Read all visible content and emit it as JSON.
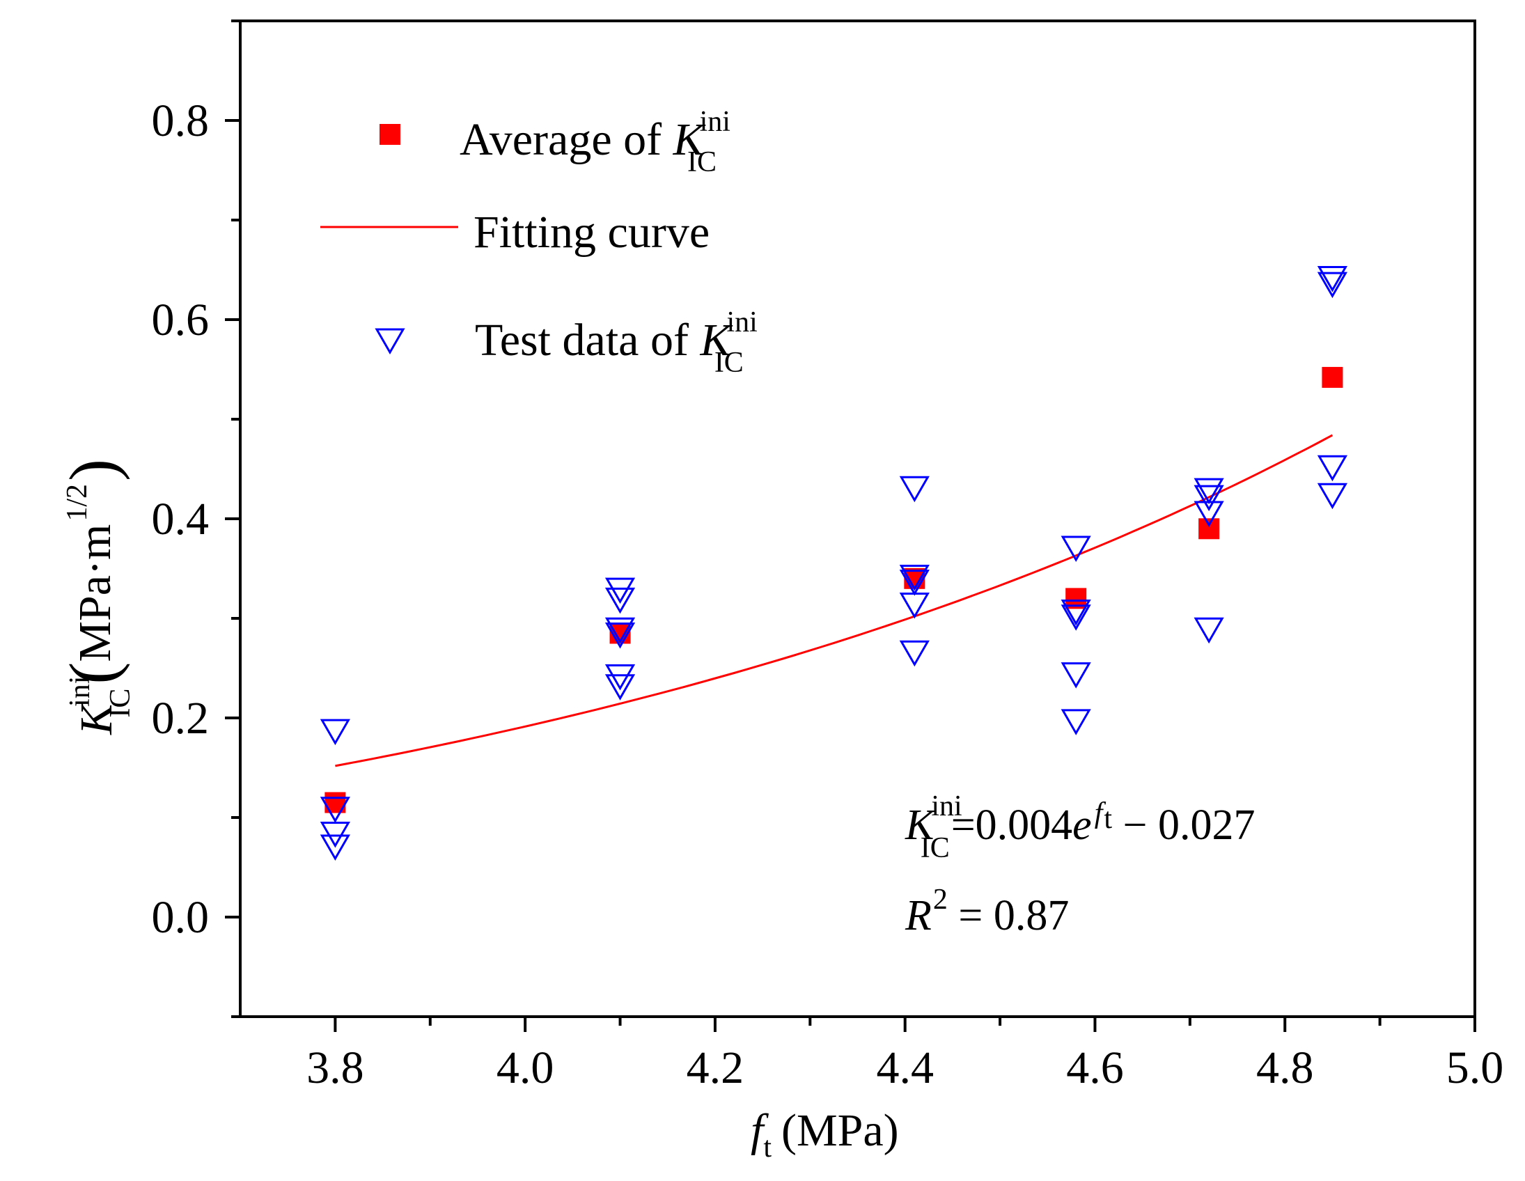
{
  "chart_data": {
    "type": "scatter",
    "title": "",
    "xlabel": {
      "main": "f",
      "sub": "t",
      "unit": "(MPa)"
    },
    "ylabel": {
      "main": "K",
      "sub": "IC",
      "sup": "ini",
      "unit_open": "(",
      "unit": "MPa·m",
      "unit_exp": "1/2",
      "unit_close": ")"
    },
    "xlim": [
      3.7,
      5.0
    ],
    "ylim": [
      -0.1,
      0.9
    ],
    "x_ticks": [
      3.8,
      4.0,
      4.2,
      4.4,
      4.6,
      4.8,
      5.0
    ],
    "x_tick_labels": [
      "3.8",
      "4.0",
      "4.2",
      "4.4",
      "4.6",
      "4.8",
      "5.0"
    ],
    "x_minor_ticks": [
      3.9,
      4.1,
      4.3,
      4.5,
      4.7,
      4.9
    ],
    "y_ticks": [
      0.0,
      0.2,
      0.4,
      0.6,
      0.8
    ],
    "y_tick_labels": [
      "0.0",
      "0.2",
      "0.4",
      "0.6",
      "0.8"
    ],
    "y_minor_ticks": [
      -0.1,
      0.1,
      0.3,
      0.5,
      0.7,
      0.9
    ],
    "series": [
      {
        "name": "Average of K_IC^ini",
        "kind": "marker-square",
        "color": "#ff0000",
        "points": [
          [
            3.8,
            0.115
          ],
          [
            4.1,
            0.285
          ],
          [
            4.41,
            0.34
          ],
          [
            4.58,
            0.32
          ],
          [
            4.72,
            0.39
          ],
          [
            4.85,
            0.542
          ]
        ]
      },
      {
        "name": "Fitting curve",
        "kind": "line",
        "color": "#ff0000",
        "formula": {
          "a": 0.004,
          "b": -0.027
        },
        "x_range": [
          3.8,
          4.85
        ]
      },
      {
        "name": "Test data of K_IC^ini",
        "kind": "marker-triangle-down",
        "color": "#0000ff",
        "points": [
          [
            3.8,
            0.188
          ],
          [
            3.8,
            0.11
          ],
          [
            3.8,
            0.085
          ],
          [
            3.8,
            0.072
          ],
          [
            4.1,
            0.33
          ],
          [
            4.1,
            0.32
          ],
          [
            4.1,
            0.29
          ],
          [
            4.1,
            0.285
          ],
          [
            4.1,
            0.243
          ],
          [
            4.1,
            0.233
          ],
          [
            4.41,
            0.432
          ],
          [
            4.41,
            0.343
          ],
          [
            4.41,
            0.338
          ],
          [
            4.41,
            0.315
          ],
          [
            4.41,
            0.267
          ],
          [
            4.58,
            0.372
          ],
          [
            4.58,
            0.308
          ],
          [
            4.58,
            0.303
          ],
          [
            4.58,
            0.245
          ],
          [
            4.58,
            0.198
          ],
          [
            4.72,
            0.43
          ],
          [
            4.72,
            0.423
          ],
          [
            4.72,
            0.407
          ],
          [
            4.72,
            0.29
          ],
          [
            4.85,
            0.643
          ],
          [
            4.85,
            0.637
          ],
          [
            4.85,
            0.453
          ],
          [
            4.85,
            0.425
          ]
        ]
      }
    ],
    "legend": {
      "position": "top-left",
      "entries": [
        {
          "text": "Average of ",
          "var": "K",
          "sub": "IC",
          "sup": "ini"
        },
        {
          "text": "Fitting curve"
        },
        {
          "text": "Test data of ",
          "var": "K",
          "sub": "IC",
          "sup": "ini"
        }
      ]
    },
    "annotations": {
      "equation": {
        "var": "K",
        "sub": "IC",
        "sup": "ini",
        "mid": "=0.004",
        "e": "e",
        "exp_var": "f",
        "exp_sub": "t",
        "tail": " − 0.027"
      },
      "r2": {
        "var": "R",
        "sup": "2",
        "tail": " = 0.87"
      }
    }
  }
}
